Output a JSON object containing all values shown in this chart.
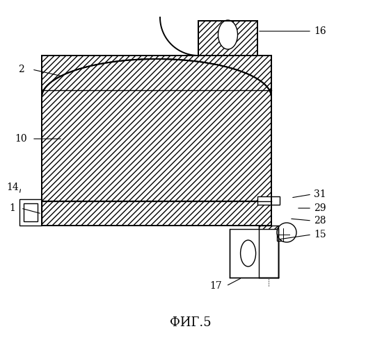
{
  "bg_color": "#ffffff",
  "title": "ФИГ.5",
  "title_fontsize": 13,
  "lw": 1.4,
  "lw_thin": 1.0
}
